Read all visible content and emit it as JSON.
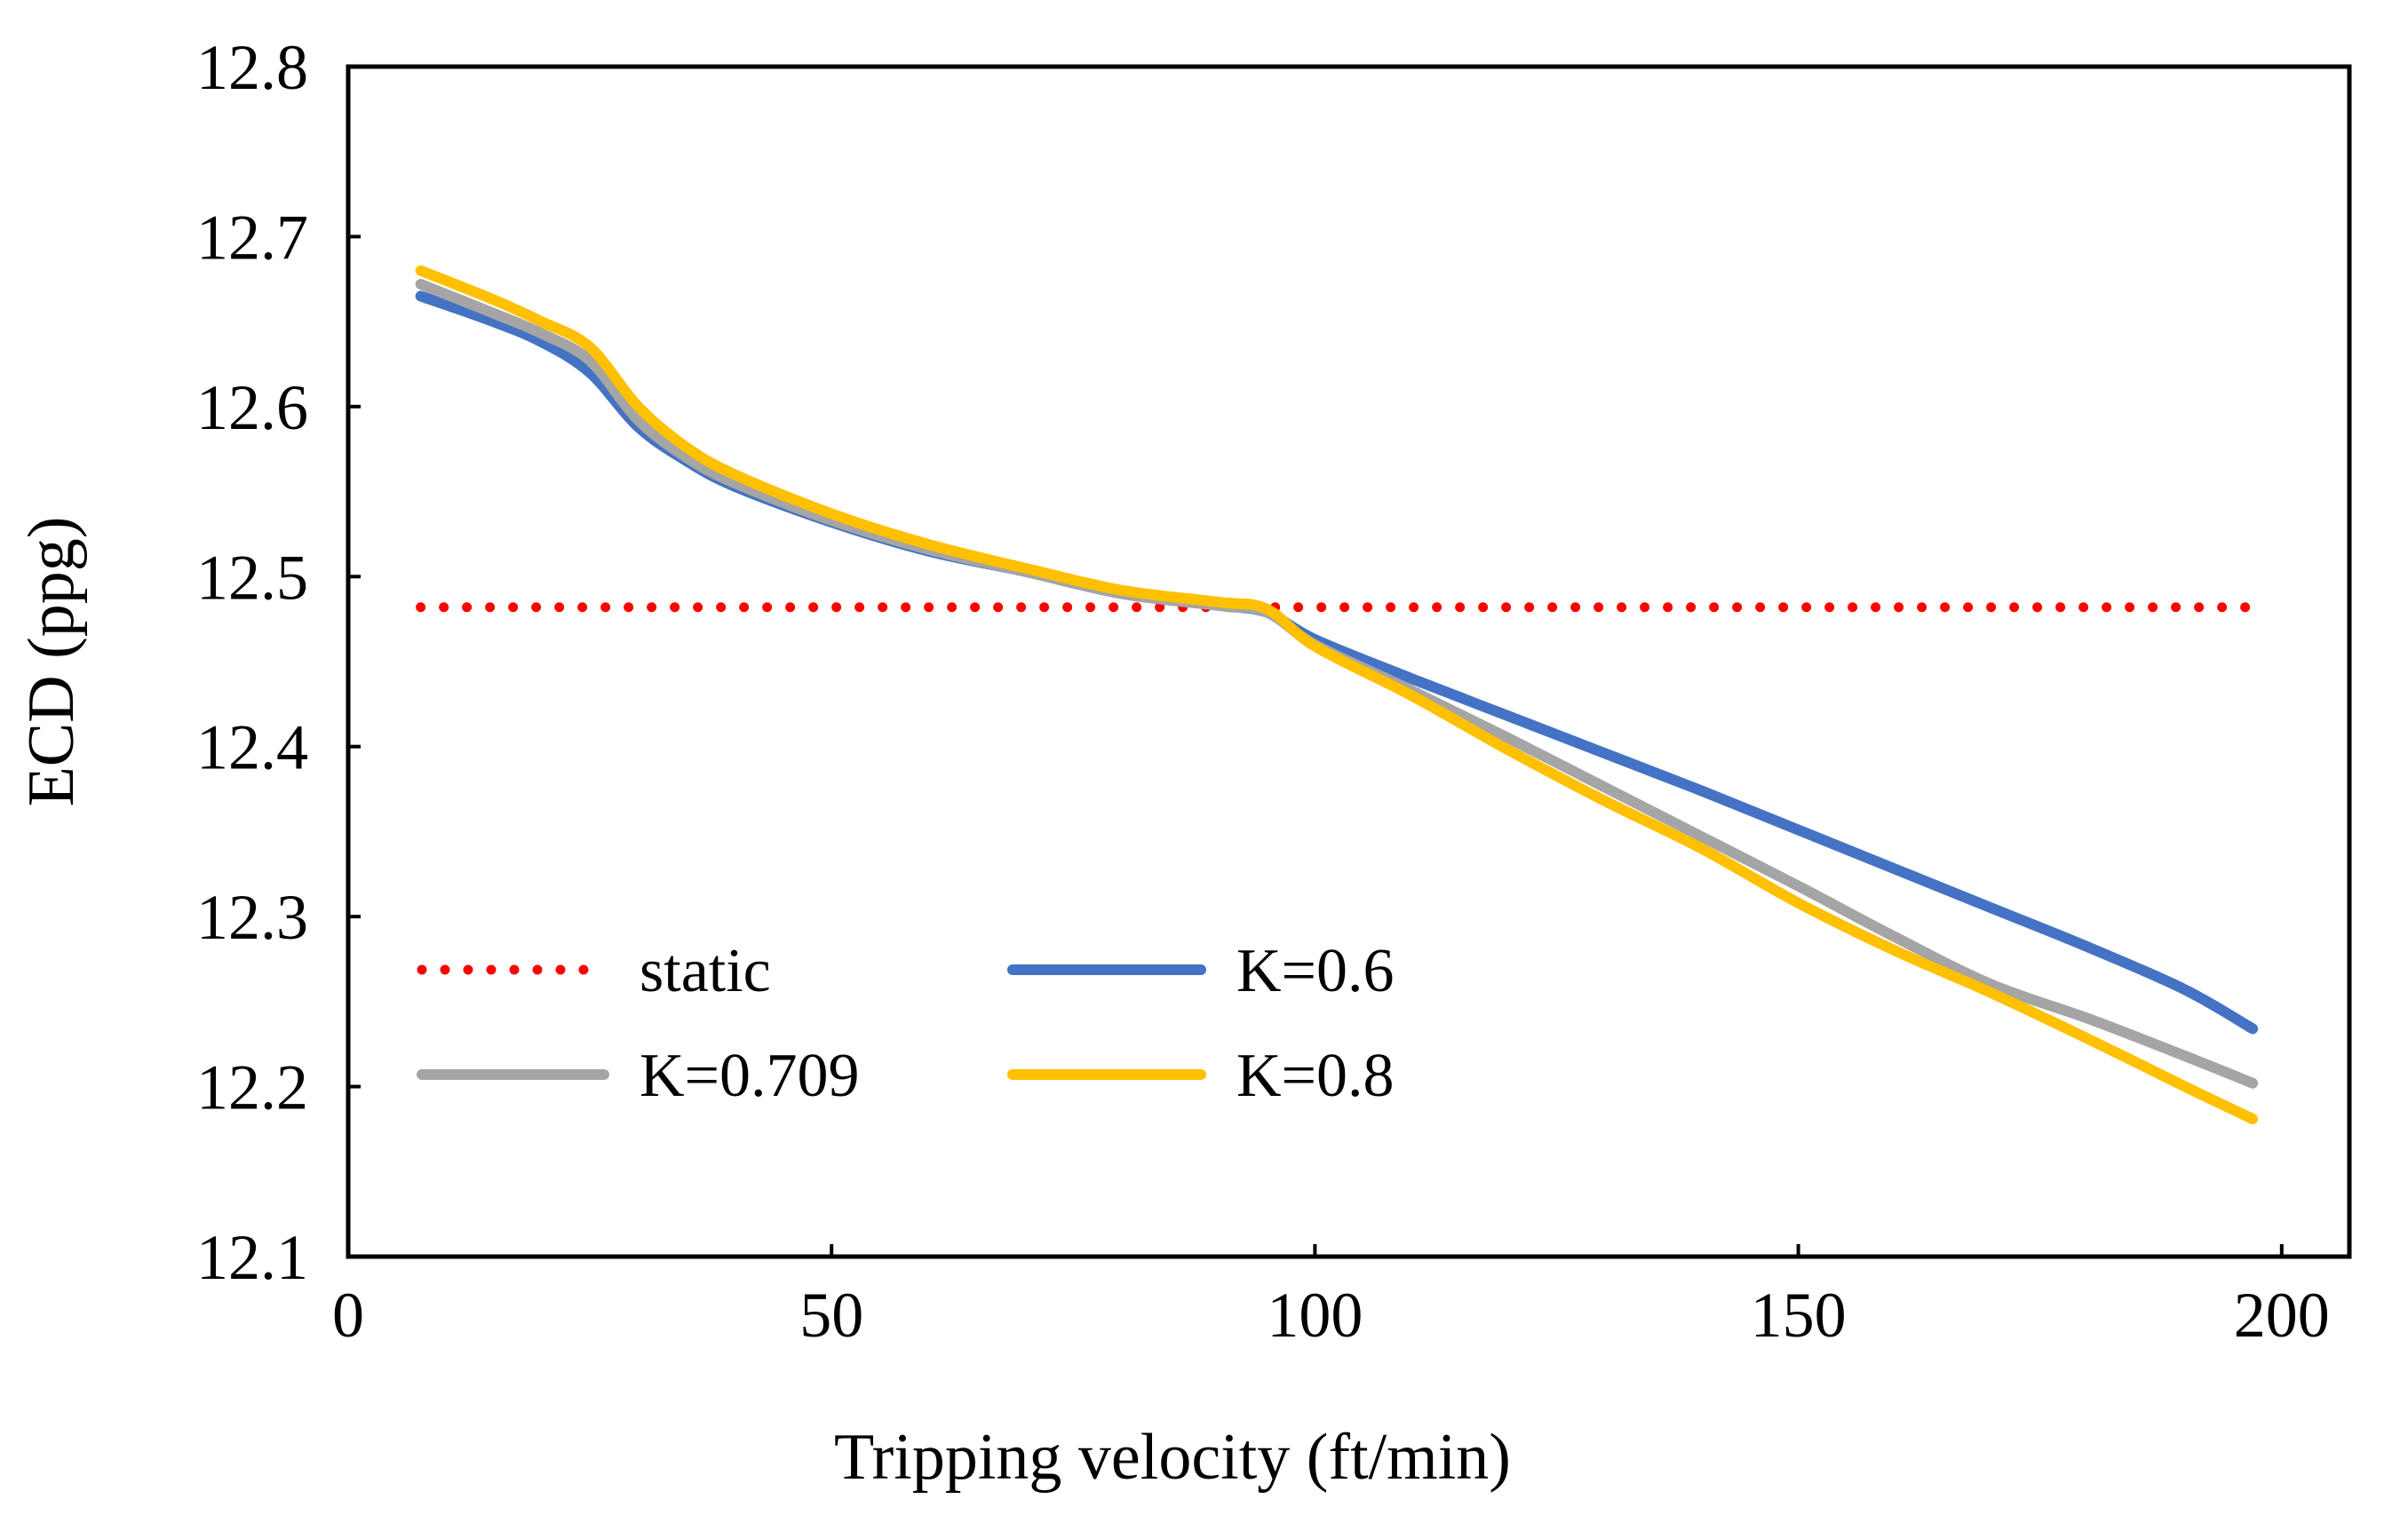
{
  "chart_data": {
    "type": "line",
    "title": "",
    "xlabel": "Tripping velocity (ft/min)",
    "ylabel": "ECD (ppg)",
    "xlim": [
      0,
      207
    ],
    "ylim": [
      12.1,
      12.8
    ],
    "xticks": [
      0,
      50,
      100,
      150,
      200
    ],
    "xtick_labels": [
      "0",
      "50",
      "100",
      "150",
      "200"
    ],
    "yticks": [
      12.1,
      12.2,
      12.3,
      12.4,
      12.5,
      12.6,
      12.7,
      12.8
    ],
    "ytick_labels": [
      "12.1",
      "12.2",
      "12.3",
      "12.4",
      "12.5",
      "12.6",
      "12.7",
      "12.8"
    ],
    "grid": false,
    "legend_position": "lower-left",
    "series": [
      {
        "name": "static",
        "color": "#ff0000",
        "style": "dotted",
        "x": [
          7.5,
          197
        ],
        "y": [
          12.482,
          12.482
        ]
      },
      {
        "name": "K=0.6",
        "color": "#4472c4",
        "style": "solid",
        "x": [
          7.5,
          15,
          20,
          25,
          30,
          35,
          40,
          50,
          60,
          70,
          80,
          90,
          95,
          100,
          110,
          120,
          130,
          140,
          150,
          160,
          170,
          180,
          190,
          197
        ],
        "y": [
          12.665,
          12.65,
          12.638,
          12.62,
          12.588,
          12.568,
          12.553,
          12.532,
          12.515,
          12.503,
          12.49,
          12.483,
          12.479,
          12.463,
          12.44,
          12.418,
          12.396,
          12.374,
          12.351,
          12.328,
          12.305,
          12.282,
          12.257,
          12.234
        ]
      },
      {
        "name": "K=0.709",
        "color": "#a5a5a5",
        "style": "solid",
        "x": [
          7.5,
          15,
          20,
          25,
          30,
          35,
          40,
          50,
          60,
          70,
          80,
          90,
          95,
          100,
          110,
          120,
          130,
          140,
          150,
          160,
          170,
          180,
          190,
          197
        ],
        "y": [
          12.672,
          12.655,
          12.643,
          12.627,
          12.592,
          12.57,
          12.555,
          12.533,
          12.516,
          12.503,
          12.49,
          12.483,
          12.479,
          12.46,
          12.433,
          12.405,
          12.376,
          12.347,
          12.318,
          12.288,
          12.26,
          12.24,
          12.218,
          12.202
        ]
      },
      {
        "name": "K=0.8",
        "color": "#ffc000",
        "style": "solid",
        "x": [
          7.5,
          15,
          20,
          25,
          30,
          35,
          40,
          50,
          60,
          70,
          80,
          90,
          95,
          100,
          110,
          120,
          130,
          140,
          150,
          160,
          170,
          180,
          190,
          197
        ],
        "y": [
          12.68,
          12.663,
          12.65,
          12.635,
          12.6,
          12.576,
          12.56,
          12.537,
          12.519,
          12.505,
          12.492,
          12.485,
          12.481,
          12.459,
          12.43,
          12.398,
          12.368,
          12.34,
          12.308,
          12.28,
          12.255,
          12.228,
          12.2,
          12.181
        ]
      }
    ]
  }
}
